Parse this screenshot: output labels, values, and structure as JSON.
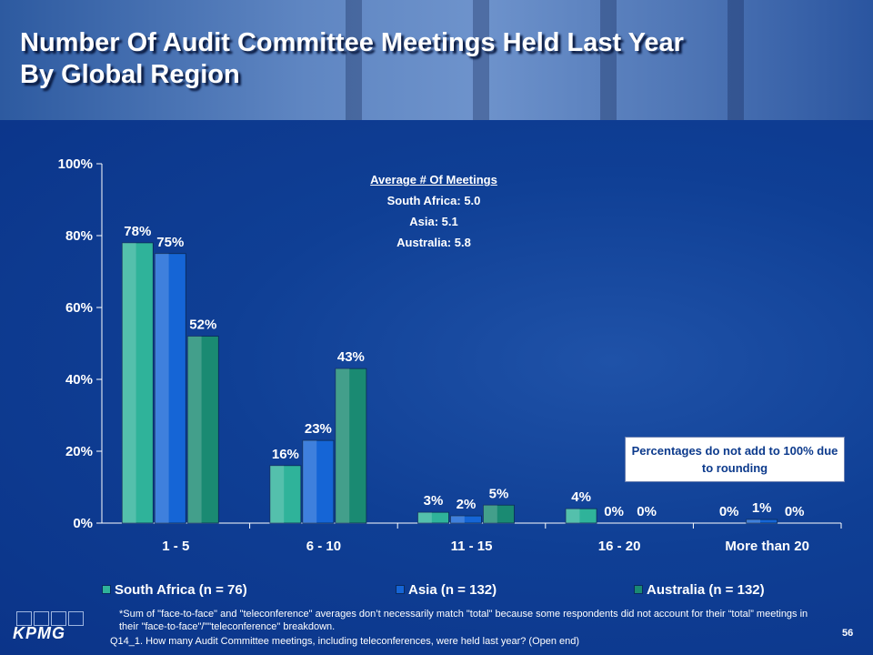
{
  "header": {
    "title_line1": "Number Of Audit Committee Meetings Held Last Year",
    "title_line2": "By Global Region"
  },
  "averages": {
    "title": "Average # Of Meetings",
    "lines": [
      "South Africa: 5.0",
      "Asia: 5.1",
      "Australia: 5.8"
    ]
  },
  "note": "Percentages do not add to 100% due to rounding",
  "footnote": "*Sum of \"face-to-face\" and \"teleconference\" averages don’t necessarily match \"total\" because some respondents did not account for their “total” meetings in their \"face-to-face\"/\"\"teleconference\" breakdown.",
  "question": "Q14_1. How many Audit Committee meetings, including teleconferences, were held last year? (Open end)",
  "logo_text": "KPMG",
  "page_number": "56",
  "chart_data": {
    "type": "bar",
    "categories": [
      "1 - 5",
      "6 - 10",
      "11 - 15",
      "16 - 20",
      "More than 20"
    ],
    "series": [
      {
        "name": "South Africa (n = 76)",
        "values": [
          78,
          16,
          3,
          4,
          0
        ],
        "labels": [
          "78%",
          "16%",
          "3%",
          "4%",
          "0%"
        ],
        "color": "#2fb39a"
      },
      {
        "name": "Asia (n = 132)",
        "values": [
          75,
          23,
          2,
          0,
          1
        ],
        "labels": [
          "75%",
          "23%",
          "2%",
          "0%",
          "1%"
        ],
        "color": "#1565d6"
      },
      {
        "name": "Australia (n = 132)",
        "values": [
          52,
          43,
          5,
          0,
          0
        ],
        "labels": [
          "52%",
          "43%",
          "5%",
          "0%",
          "0%"
        ],
        "color": "#1a8a72"
      }
    ],
    "yticks": [
      "0%",
      "20%",
      "40%",
      "60%",
      "80%",
      "100%"
    ],
    "ylim": [
      0,
      100
    ],
    "legend_position": "bottom"
  }
}
